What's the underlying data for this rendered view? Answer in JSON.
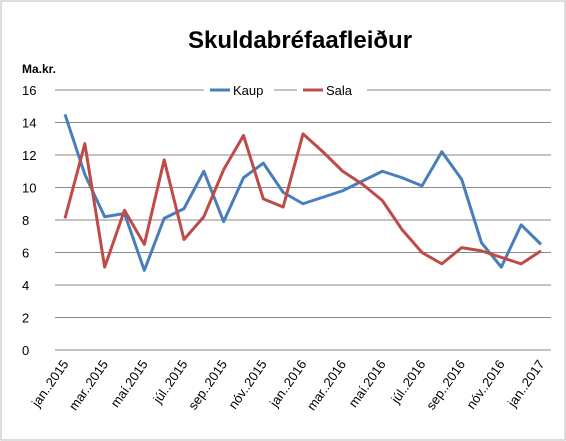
{
  "chart_data": {
    "type": "line",
    "title": "Skuldabréfaafleiður",
    "y_label": "Ma.kr.",
    "categories": [
      "jan..2015",
      null,
      "mar..2015",
      null,
      "maí.2015",
      null,
      "júl..2015",
      null,
      "sep..2015",
      null,
      "nóv..2015",
      null,
      "jan..2016",
      null,
      "mar..2016",
      null,
      "maí.2016",
      null,
      "júl..2016",
      null,
      "sep..2016",
      null,
      "nóv..2016",
      null,
      "jan..2017"
    ],
    "series": [
      {
        "name": "Kaup",
        "color": "#4a7ebb",
        "values": [
          14.5,
          10.8,
          8.2,
          8.4,
          4.9,
          8.1,
          8.7,
          11.0,
          7.9,
          10.6,
          11.5,
          9.7,
          9.0,
          9.4,
          9.8,
          10.4,
          11.0,
          10.6,
          10.1,
          12.2,
          10.5,
          6.6,
          5.1,
          7.7,
          6.5
        ]
      },
      {
        "name": "Sala",
        "color": "#be4b48",
        "values": [
          8.1,
          12.7,
          5.1,
          8.6,
          6.5,
          11.7,
          6.8,
          8.2,
          11.1,
          13.2,
          9.3,
          8.8,
          13.3,
          12.2,
          11.0,
          10.2,
          9.2,
          7.4,
          6.0,
          5.3,
          6.3,
          6.1,
          5.7,
          5.3,
          6.1
        ]
      }
    ],
    "ylim": [
      0,
      16
    ],
    "yticks": [
      0,
      2,
      4,
      6,
      8,
      10,
      12,
      14,
      16
    ],
    "grid": true,
    "legend": "top"
  }
}
